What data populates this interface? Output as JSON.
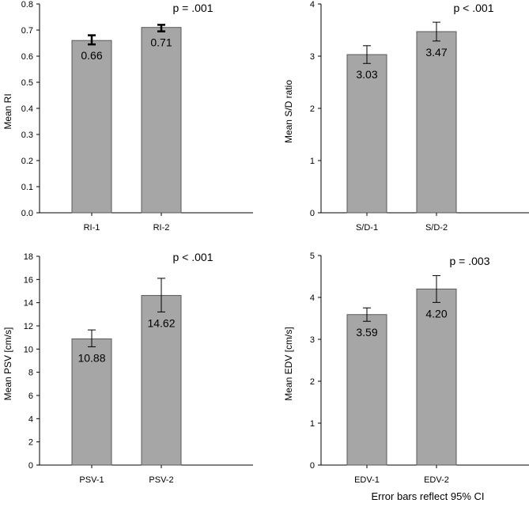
{
  "footnote": "Error bars reflect 95% CI",
  "chart_data": [
    {
      "type": "bar",
      "ylabel": "Mean RI",
      "ylim": [
        0,
        0.8
      ],
      "yticks": [
        "0.0",
        "0.1",
        "0.2",
        "0.3",
        "0.4",
        "0.5",
        "0.6",
        "0.7",
        "0.8"
      ],
      "categories": [
        "RI-1",
        "RI-2"
      ],
      "values": [
        0.66,
        0.71
      ],
      "value_labels": [
        "0.66",
        "0.71"
      ],
      "ci_low": [
        0.645,
        0.695
      ],
      "ci_high": [
        0.68,
        0.72
      ],
      "p_value": "p = .001",
      "bar_color": "#a6a6a6"
    },
    {
      "type": "bar",
      "ylabel": "Mean S/D ratio",
      "ylim": [
        0,
        4
      ],
      "yticks": [
        "0",
        "1",
        "2",
        "3",
        "4"
      ],
      "categories": [
        "S/D-1",
        "S/D-2"
      ],
      "values": [
        3.03,
        3.47
      ],
      "value_labels": [
        "3.03",
        "3.47"
      ],
      "ci_low": [
        2.86,
        3.29
      ],
      "ci_high": [
        3.2,
        3.65
      ],
      "p_value": "p < .001",
      "bar_color": "#a6a6a6"
    },
    {
      "type": "bar",
      "ylabel": "Mean PSV [cm/s]",
      "ylim": [
        0,
        18
      ],
      "yticks": [
        "0",
        "2",
        "4",
        "6",
        "8",
        "10",
        "12",
        "14",
        "16",
        "18"
      ],
      "categories": [
        "PSV-1",
        "PSV-2"
      ],
      "values": [
        10.88,
        14.62
      ],
      "value_labels": [
        "10.88",
        "14.62"
      ],
      "ci_low": [
        10.2,
        13.2
      ],
      "ci_high": [
        11.65,
        16.1
      ],
      "p_value": "p < .001",
      "bar_color": "#a6a6a6"
    },
    {
      "type": "bar",
      "ylabel": "Mean EDV [cm/s]",
      "ylim": [
        0,
        5
      ],
      "yticks": [
        "0",
        "1",
        "2",
        "3",
        "4",
        "5"
      ],
      "categories": [
        "EDV-1",
        "EDV-2"
      ],
      "values": [
        3.59,
        4.2
      ],
      "value_labels": [
        "3.59",
        "4.20"
      ],
      "ci_low": [
        3.43,
        3.88
      ],
      "ci_high": [
        3.75,
        4.52
      ],
      "p_value": "p = .003",
      "bar_color": "#a6a6a6"
    }
  ]
}
